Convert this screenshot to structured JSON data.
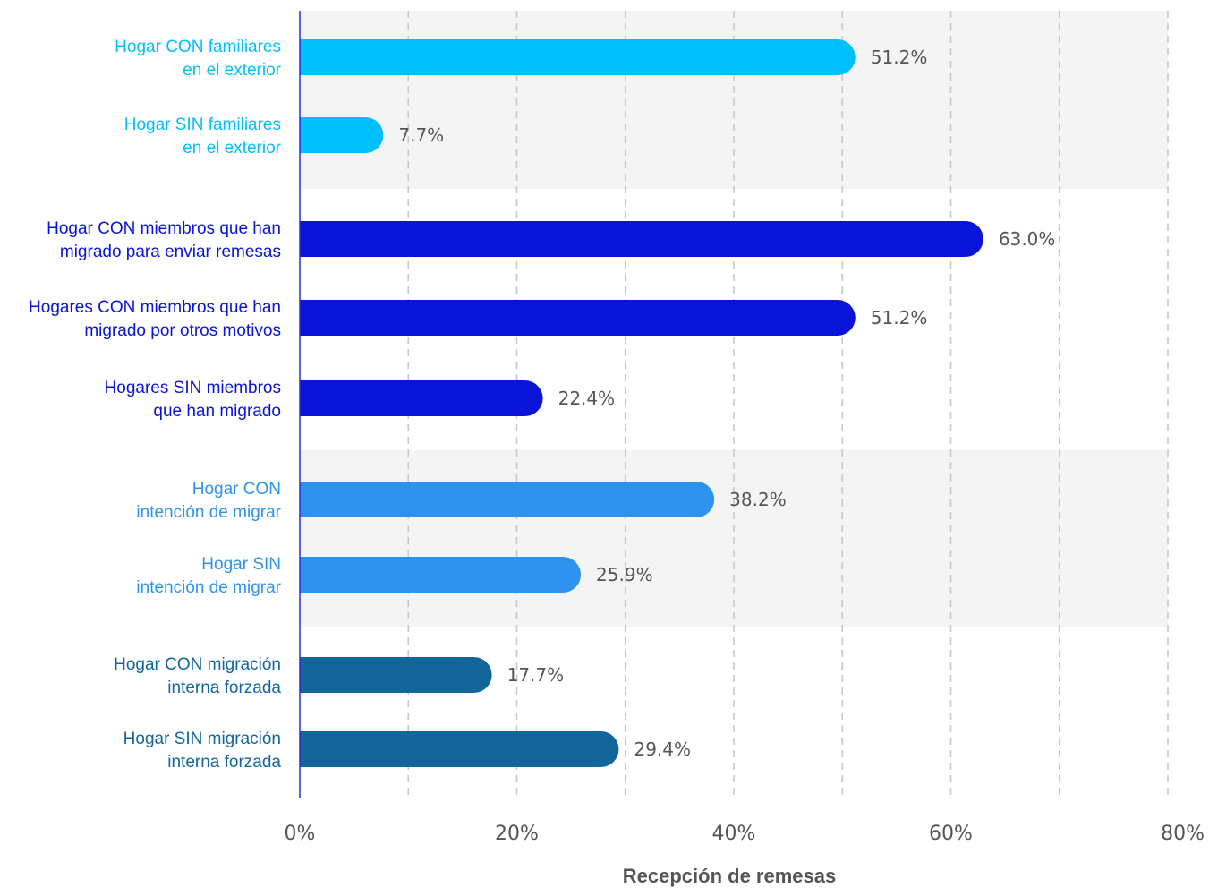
{
  "chart_data": {
    "type": "bar",
    "orientation": "horizontal",
    "xlabel": "Recepción de remesas",
    "xlim": [
      0,
      80
    ],
    "xticks": [
      "0%",
      "20%",
      "40%",
      "60%",
      "80%"
    ],
    "grid": "vertical dashed every 10%",
    "groups": [
      {
        "color": "#00BFFF",
        "shaded": true,
        "bars": [
          {
            "label": [
              "Hogar CON familiares",
              "en el exterior"
            ],
            "value": 51.2,
            "value_label": "51.2%"
          },
          {
            "label": [
              "Hogar SIN familiares",
              "en el exterior"
            ],
            "value": 7.7,
            "value_label": "7.7%"
          }
        ]
      },
      {
        "color": "#0A14D9",
        "shaded": false,
        "bars": [
          {
            "label": [
              "Hogar CON miembros que han",
              "migrado para enviar remesas"
            ],
            "value": 63.0,
            "value_label": "63.0%"
          },
          {
            "label": [
              "Hogares CON miembros que han",
              "migrado por otros motivos"
            ],
            "value": 51.2,
            "value_label": "51.2%"
          },
          {
            "label": [
              "Hogares SIN miembros",
              "que han migrado"
            ],
            "value": 22.4,
            "value_label": "22.4%"
          }
        ]
      },
      {
        "color": "#2E93EE",
        "shaded": true,
        "bars": [
          {
            "label": [
              "Hogar CON",
              "intención de migrar"
            ],
            "value": 38.2,
            "value_label": "38.2%"
          },
          {
            "label": [
              "Hogar SIN",
              "intención de migrar"
            ],
            "value": 25.9,
            "value_label": "25.9%"
          }
        ]
      },
      {
        "color": "#126699",
        "shaded": false,
        "bars": [
          {
            "label": [
              "Hogar CON migración",
              "interna forzada"
            ],
            "value": 17.7,
            "value_label": "17.7%"
          },
          {
            "label": [
              "Hogar SIN migración",
              "interna forzada"
            ],
            "value": 29.4,
            "value_label": "29.4%"
          }
        ]
      }
    ],
    "colors": {
      "shade": "#F4F4F4",
      "grid": "#C8C8C8",
      "axis": "#2A2FD6",
      "text": "#555555"
    }
  }
}
